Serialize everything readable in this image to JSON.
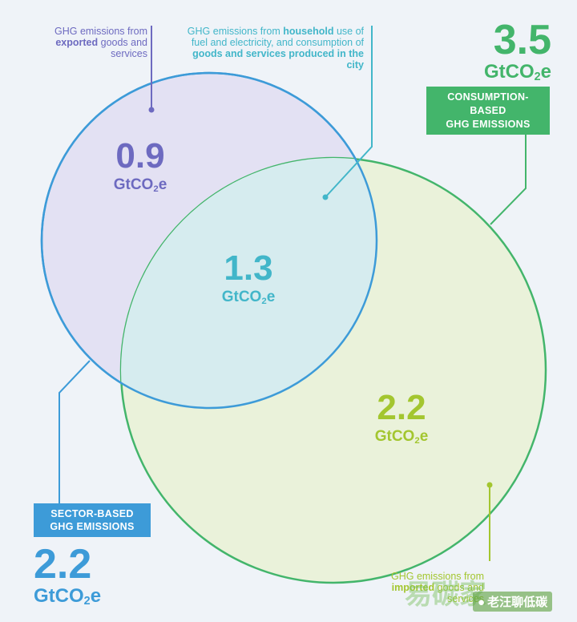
{
  "colors": {
    "background": "#eff3f8",
    "sector_purple": "#6d6ac0",
    "sector_blue": "#3d9bd8",
    "overlap_teal": "#42b6c9",
    "consumption_green": "#43b56b",
    "import_lime": "#a3c62f"
  },
  "labels": {
    "exported": {
      "pre": "GHG emissions from ",
      "bold": "exported",
      "post": " goods and services"
    },
    "household": {
      "pre": "GHG emissions from ",
      "bold1": "household",
      "mid": " use of fuel and electricity, and consumption of ",
      "bold2": "goods and services produced in the city"
    },
    "imported": {
      "pre": "GHG emissions from ",
      "bold": "imported",
      "post": " goods and services"
    }
  },
  "values": {
    "exported": "0.9",
    "overlap": "1.3",
    "imported": "2.2",
    "sector_total": "2.2",
    "consumption_total": "3.5"
  },
  "unit": {
    "main": "GtCO",
    "sub": "2",
    "tail": "e"
  },
  "badges": {
    "consumption": [
      "CONSUMPTION-",
      "BASED",
      "GHG EMISSIONS"
    ],
    "sector": [
      "SECTOR-BASED",
      "GHG EMISSIONS"
    ]
  },
  "watermark": {
    "left": "易碳家",
    "right": "老汪聊低碳"
  }
}
